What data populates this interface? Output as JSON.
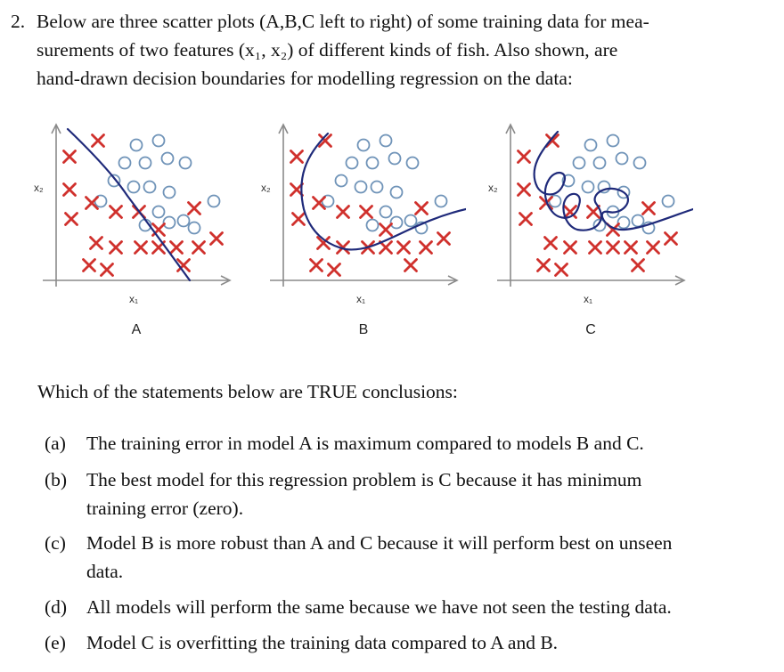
{
  "question": {
    "number": "2.",
    "lines": [
      "Below are three scatter plots (A,B,C left to right) of some training data for mea-",
      "surements of two features (x₁, x₂) of different kinds of fish. Also shown, are",
      "hand-drawn decision boundaries for modelling regression on the data:"
    ]
  },
  "plots": [
    {
      "label": "A",
      "xaxis": "x₁",
      "yaxis": "x₂"
    },
    {
      "label": "B",
      "xaxis": "x₁",
      "yaxis": "x₂"
    },
    {
      "label": "C",
      "xaxis": "x₁",
      "yaxis": "x₂"
    }
  ],
  "colors": {
    "cross": "#d0312d",
    "circle": "#6f93b8",
    "boundary": "#1f2a7a",
    "axis": "#8a8a8a"
  },
  "prompt": "Which of the statements below are TRUE conclusions:",
  "options": [
    {
      "letter": "(a)",
      "lines": [
        "The training error in model A is maximum compared to models B and C."
      ]
    },
    {
      "letter": "(b)",
      "lines": [
        "The best model for this regression problem is C because it has minimum",
        "training error (zero)."
      ]
    },
    {
      "letter": "(c)",
      "lines": [
        "Model B is more robust than A and C because it will perform best on unseen",
        "data."
      ]
    },
    {
      "letter": "(d)",
      "lines": [
        "All models will perform the same because we have not seen the testing data."
      ]
    },
    {
      "letter": "(e)",
      "lines": [
        "Model C is overfitting the training data compared to A and B."
      ]
    }
  ]
}
